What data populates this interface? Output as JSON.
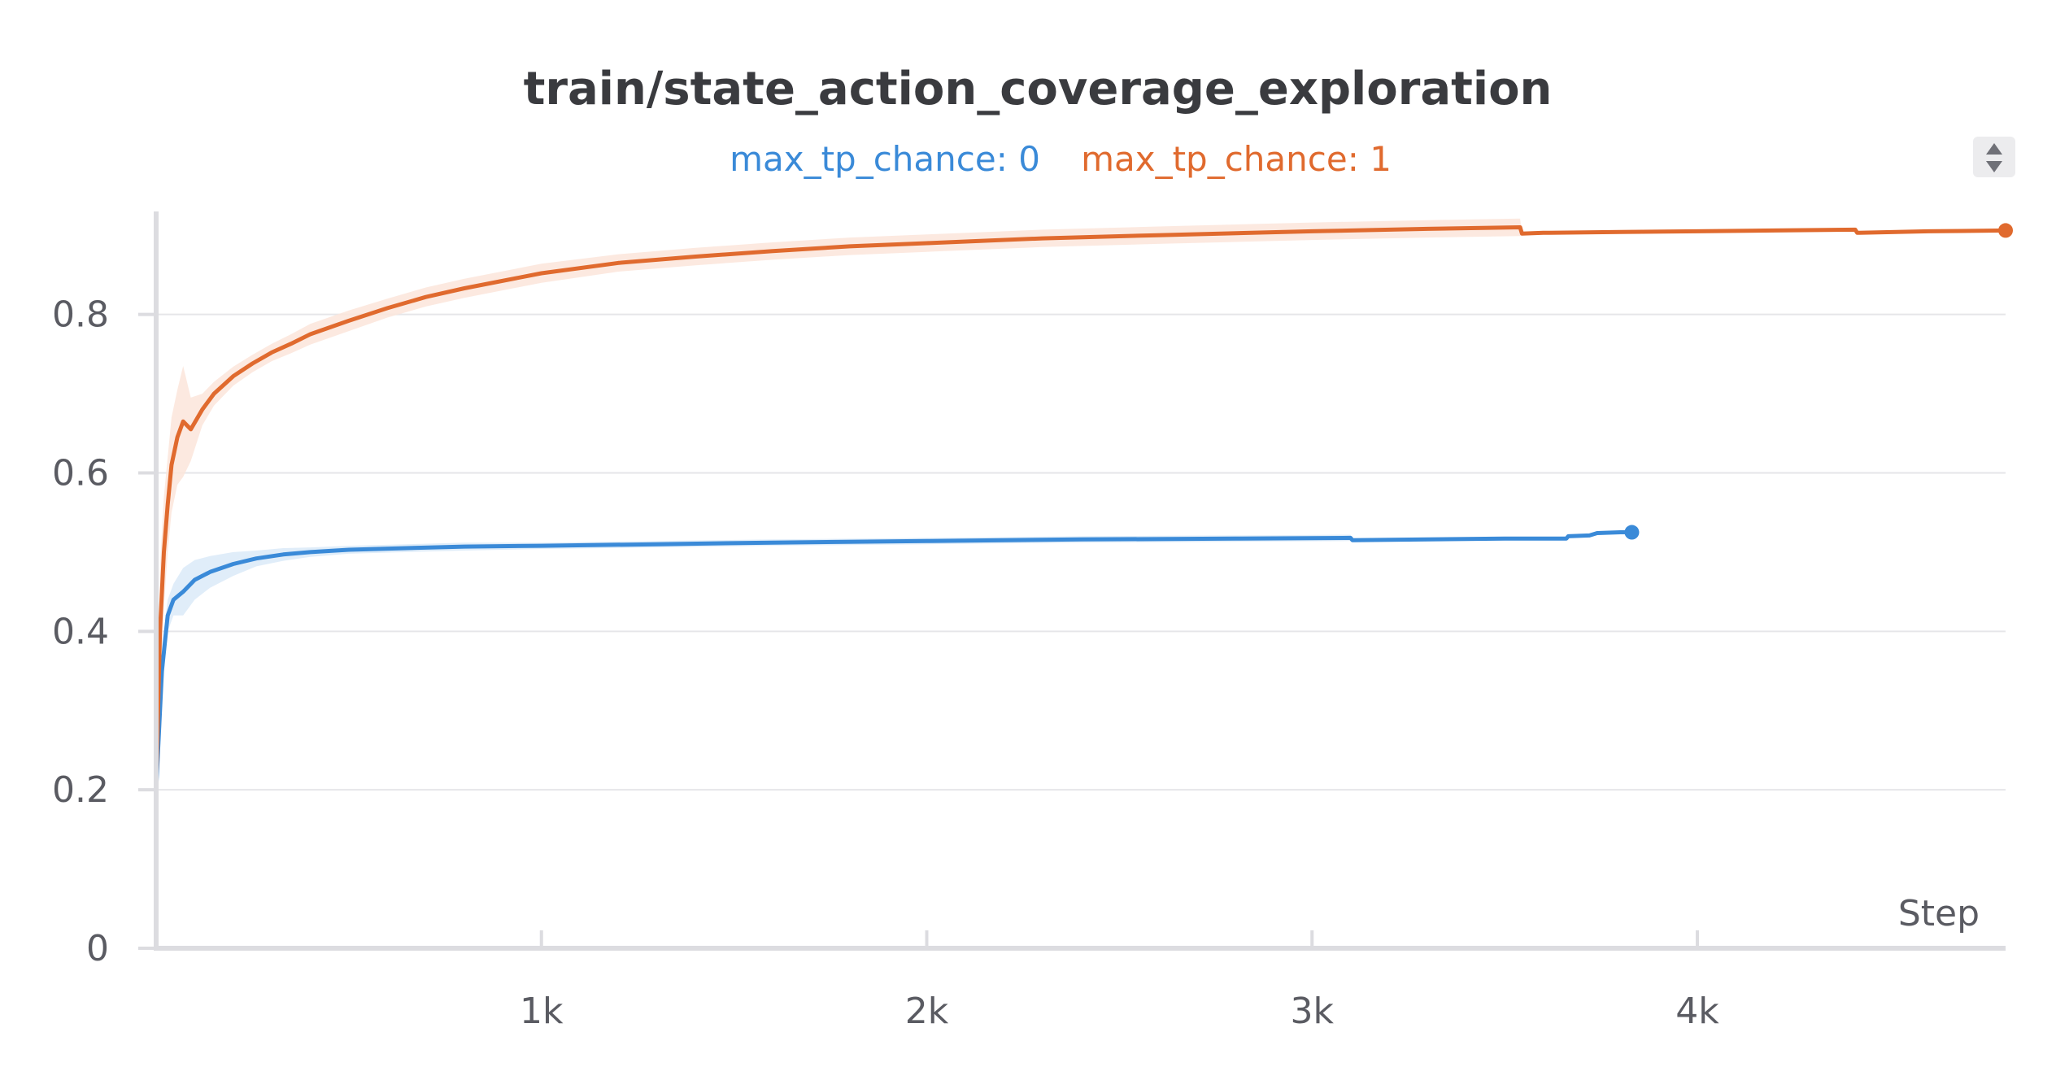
{
  "chart_data": {
    "type": "line",
    "title": "train/state_action_coverage_exploration",
    "xlabel": "Step",
    "ylabel": "",
    "xlim": [
      0,
      4800
    ],
    "ylim": [
      0,
      0.93
    ],
    "grid": true,
    "legend_position": "top-center",
    "x_ticks": [
      1000,
      2000,
      3000,
      4000
    ],
    "x_tick_labels": [
      "1k",
      "2k",
      "3k",
      "4k"
    ],
    "y_ticks": [
      0,
      0.2,
      0.4,
      0.6,
      0.8
    ],
    "y_tick_labels": [
      "0",
      "0.2",
      "0.4",
      "0.6",
      "0.8"
    ],
    "series": [
      {
        "name": "max_tp_chance: 0",
        "color": "#3a8ad8",
        "band_color": "#dbeaf8",
        "end_marker": true,
        "x": [
          0,
          15,
          30,
          45,
          70,
          100,
          140,
          200,
          260,
          330,
          400,
          500,
          650,
          800,
          1000,
          1300,
          1600,
          2000,
          2400,
          2800,
          3100,
          3105,
          3300,
          3500,
          3660,
          3665,
          3720,
          3740,
          3800,
          3830
        ],
        "y": [
          0.2,
          0.35,
          0.42,
          0.44,
          0.45,
          0.465,
          0.475,
          0.485,
          0.492,
          0.497,
          0.5,
          0.503,
          0.505,
          0.507,
          0.508,
          0.51,
          0.512,
          0.514,
          0.516,
          0.517,
          0.518,
          0.515,
          0.516,
          0.517,
          0.517,
          0.52,
          0.521,
          0.524,
          0.525,
          0.525
        ],
        "band": [
          0.0,
          0.03,
          0.02,
          0.02,
          0.03,
          0.025,
          0.02,
          0.015,
          0.01,
          0.008,
          0.006,
          0.005,
          0.005,
          0.005,
          0.004,
          0.004,
          0.004,
          0.004,
          0.004,
          0.004,
          0.004,
          0.0,
          0.0,
          0.0,
          0.0,
          0.0,
          0.0,
          0.0,
          0.0,
          0.0
        ]
      },
      {
        "name": "max_tp_chance: 1",
        "color": "#e06a2e",
        "band_color": "#fbe5da",
        "end_marker": true,
        "x": [
          0,
          10,
          20,
          30,
          40,
          55,
          70,
          90,
          120,
          150,
          200,
          250,
          300,
          350,
          400,
          500,
          600,
          700,
          800,
          1000,
          1200,
          1400,
          1600,
          1800,
          2000,
          2300,
          2600,
          3000,
          3300,
          3540,
          3545,
          3600,
          3800,
          4000,
          4200,
          4410,
          4415,
          4600,
          4800
        ],
        "y": [
          0.2,
          0.4,
          0.5,
          0.56,
          0.61,
          0.645,
          0.665,
          0.655,
          0.68,
          0.7,
          0.722,
          0.738,
          0.752,
          0.763,
          0.775,
          0.792,
          0.808,
          0.822,
          0.833,
          0.852,
          0.865,
          0.873,
          0.88,
          0.886,
          0.89,
          0.896,
          0.9,
          0.905,
          0.908,
          0.91,
          0.902,
          0.903,
          0.904,
          0.905,
          0.906,
          0.907,
          0.903,
          0.905,
          0.906
        ],
        "band": [
          0.0,
          0.08,
          0.07,
          0.06,
          0.06,
          0.06,
          0.07,
          0.04,
          0.02,
          0.015,
          0.012,
          0.011,
          0.011,
          0.012,
          0.013,
          0.013,
          0.012,
          0.012,
          0.012,
          0.012,
          0.011,
          0.011,
          0.011,
          0.011,
          0.011,
          0.011,
          0.011,
          0.011,
          0.011,
          0.011,
          0.0,
          0.0,
          0.0,
          0.0,
          0.0,
          0.0,
          0.0,
          0.0,
          0.0
        ]
      }
    ]
  }
}
